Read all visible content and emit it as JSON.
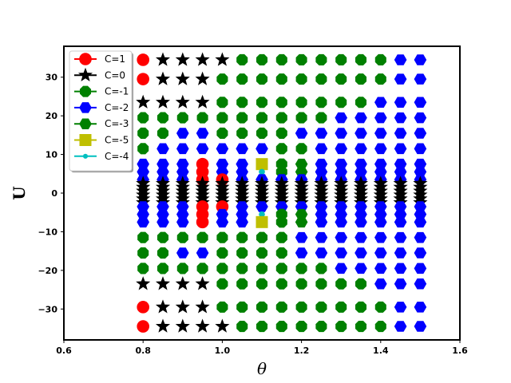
{
  "chart_data": {
    "type": "scatter",
    "xlabel": "θ",
    "ylabel": "U",
    "xlim": [
      0.6,
      1.6
    ],
    "ylim": [
      -38,
      38
    ],
    "xticks": [
      "0.6",
      "0.8",
      "1.0",
      "1.2",
      "1.4",
      "1.6"
    ],
    "yticks": [
      "30",
      "20",
      "10",
      "0",
      "−10",
      "−20",
      "−30"
    ],
    "legend_position": "top-left",
    "theta": [
      0.8,
      0.85,
      0.9,
      0.95,
      1.0,
      1.05,
      1.1,
      1.15,
      1.2,
      1.25,
      1.3,
      1.35,
      1.4,
      1.45,
      1.5
    ],
    "u_levels": [
      34.5,
      29.5,
      23.5,
      19.5,
      15.5,
      11.5,
      7.5,
      5.5,
      3.5,
      2.5,
      1.5,
      0.5,
      -0.5,
      -1.5,
      -2.5,
      -3.5,
      -5.5,
      -7.5,
      -11.5,
      -15.5,
      -19.5,
      -23.5,
      -29.5,
      -34.5
    ],
    "series": [
      {
        "name": "C=1",
        "color": "#ff0000",
        "marker": "circle"
      },
      {
        "name": "C=0",
        "color": "#000000",
        "marker": "star"
      },
      {
        "name": "C=-1",
        "color": "#008000",
        "marker": "octagon"
      },
      {
        "name": "C=-2",
        "color": "#0000ff",
        "marker": "hexagon"
      },
      {
        "name": "C=-3",
        "color": "#008000",
        "marker": "hexagon"
      },
      {
        "name": "C=-5",
        "color": "#bfbf00",
        "marker": "square"
      },
      {
        "name": "C=-4",
        "color": "#00bfbf",
        "marker": "point"
      }
    ],
    "class_grid": [
      "1  0  0  0  0  -1 -1 -1 -1 -1 -1 -1 -1 -2 -2",
      "1  0  0  0  -1 -1 -1 -1 -1 -1 -1 -1 -1 -2 -2",
      "0  0  0  0  -1 -1 -1 -1 -1 -1 -1 -1 -2 -2 -2",
      "-1 -1 -1 -1 -1 -1 -1 -1 -1 -1 -2 -2 -2 -2 -2",
      "-1 -1 -2 -2 -1 -1 -1 -1 -2 -2 -2 -2 -2 -2 -2",
      "-1 -2 -2 -2 -2 -2 -2 -1 -1 -2 -2 -2 -2 -2 -2",
      "-2 -2 -2 1  -2 -2 -5 -1 -3 -2 -2 -2 -2 -2 -2",
      "-2 -2 -2 1  -2 -2 -4 -1 -3 -2 -2 -2 -2 -2 -2",
      "-2 -2 -2 1  1  -2 -2 -2 -2 -2 -2 -2 -2 -2 -2",
      "0  0  0  0  0  0  0  0  0  0  0  0  0  0  0",
      "0  0  0  0  0  0  0  0  0  0  0  0  0  0  0",
      "0  0  0  0  0  0  0  0  0  0  0  0  0  0  0",
      "0  0  0  0  0  0  0  0  0  0  0  0  0  0  0",
      "0  0  0  0  0  0  0  0  0  0  0  0  0  0  0",
      "0  0  0  0  0  0  0  0  0  0  0  0  0  0  0",
      "-2 -2 -2 1  1  -2 -2 -2 -2 -2 -2 -2 -2 -2 -2",
      "-2 -2 -2 1  -2 -2 -4 -1 -3 -2 -2 -2 -2 -2 -2",
      "-2 -2 -2 1  -2 -2 -5 -1 -3 -2 -2 -2 -2 -2 -2",
      "-1 -1 -1 -1 -1 -1 -1 -1 -2 -2 -2 -2 -2 -2 -2",
      "-1 -1 -2 -2 -1 -1 -1 -1 -2 -2 -2 -2 -2 -2 -2",
      "-1 -1 -1 -1 -1 -1 -1 -1 -1 -1 -2 -2 -2 -2 -2",
      "0  0  0  0  -1 -1 -1 -1 -1 -1 -1 -1 -2 -2 -2",
      "1  0  0  0  -1 -1 -1 -1 -1 -1 -1 -1 -1 -2 -2",
      "1  0  0  0  0  -1 -1 -1 -1 -1 -1 -1 -1 -2 -2"
    ]
  }
}
